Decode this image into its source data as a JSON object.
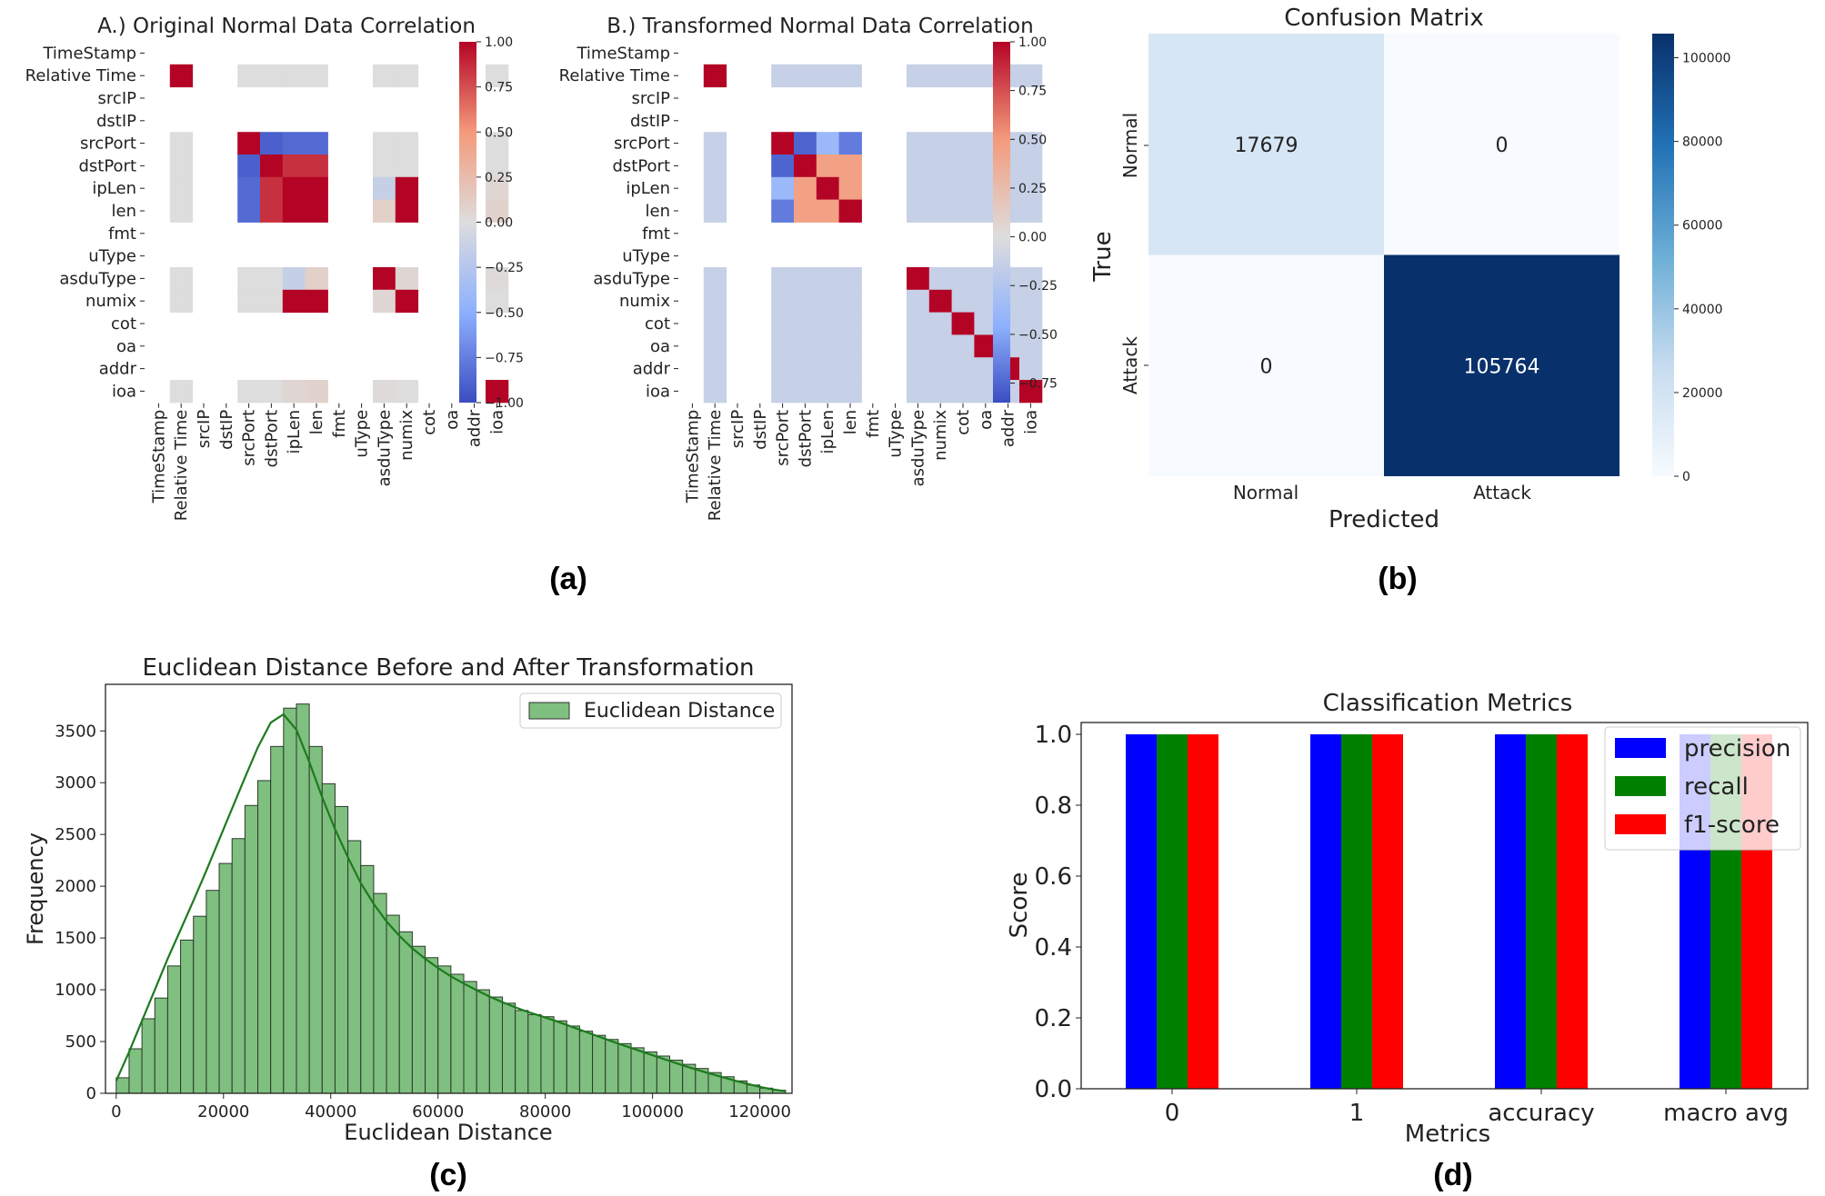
{
  "panel_labels": [
    "(a)",
    "(b)",
    "(c)",
    "(d)"
  ],
  "chart_data": [
    {
      "type": "heatmap",
      "title": "A.) Original Normal Data Correlation",
      "labels": [
        "TimeStamp",
        "Relative Time",
        "srcIP",
        "dstIP",
        "srcPort",
        "dstPort",
        "ipLen",
        "len",
        "fmt",
        "uType",
        "asduType",
        "numix",
        "cot",
        "oa",
        "addr",
        "ioa"
      ],
      "valid": [
        1,
        4,
        5,
        6,
        7,
        10,
        11,
        15
      ],
      "cells": [
        [
          4,
          5,
          -0.9
        ],
        [
          4,
          6,
          -0.85
        ],
        [
          4,
          7,
          -0.85
        ],
        [
          5,
          6,
          0.85
        ],
        [
          5,
          7,
          0.85
        ],
        [
          6,
          7,
          1.0
        ],
        [
          6,
          10,
          -0.15
        ],
        [
          6,
          11,
          1.0
        ],
        [
          7,
          10,
          0.1
        ],
        [
          7,
          11,
          1.0
        ],
        [
          6,
          15,
          0.05
        ],
        [
          7,
          15,
          0.08
        ],
        [
          10,
          11,
          0.05
        ],
        [
          10,
          15,
          0.02
        ]
      ],
      "colorbar": {
        "min": -1.0,
        "max": 1.0,
        "ticks": [
          1.0,
          0.75,
          0.5,
          0.25,
          0.0,
          -0.25,
          -0.5,
          -0.75,
          -1.0
        ]
      },
      "colorbar_labels": [
        "1.00",
        "0.75",
        "0.50",
        "0.25",
        "0.00",
        "−0.25",
        "−0.50",
        "−0.75",
        "−1.00"
      ]
    },
    {
      "type": "heatmap",
      "title": "B.) Transformed Normal Data Correlation",
      "labels": [
        "TimeStamp",
        "Relative Time",
        "srcIP",
        "dstIP",
        "srcPort",
        "dstPort",
        "ipLen",
        "len",
        "fmt",
        "uType",
        "asduType",
        "numix",
        "cot",
        "oa",
        "addr",
        "ioa"
      ],
      "valid": [
        1,
        4,
        5,
        6,
        7,
        10,
        11,
        12,
        13,
        14,
        15
      ],
      "default_offdiag": -0.12,
      "cells": [
        [
          4,
          5,
          -0.75
        ],
        [
          4,
          6,
          -0.35
        ],
        [
          4,
          7,
          -0.65
        ],
        [
          5,
          6,
          0.45
        ],
        [
          5,
          7,
          0.45
        ],
        [
          6,
          7,
          0.45
        ]
      ],
      "colorbar": {
        "min": -0.85,
        "max": 1.0,
        "ticks": [
          1.0,
          0.75,
          0.5,
          0.25,
          0.0,
          -0.25,
          -0.5,
          -0.75
        ]
      },
      "colorbar_labels": [
        "1.00",
        "0.75",
        "0.50",
        "0.25",
        "0.00",
        "−0.25",
        "−0.50",
        "−0.75"
      ]
    },
    {
      "type": "heatmap",
      "title": "Confusion Matrix",
      "xlabel": "Predicted",
      "ylabel": "True",
      "categories": [
        "Normal",
        "Attack"
      ],
      "values": [
        [
          17679,
          0
        ],
        [
          0,
          105764
        ]
      ],
      "value_labels": [
        [
          "17679",
          "0"
        ],
        [
          "0",
          "105764"
        ]
      ],
      "colorbar": {
        "min": 0,
        "max": 105764,
        "ticks": [
          100000,
          80000,
          60000,
          40000,
          20000,
          0
        ]
      },
      "colorbar_labels": [
        "100000",
        "80000",
        "60000",
        "40000",
        "20000",
        "0"
      ]
    },
    {
      "type": "bar",
      "title": "Euclidean Distance Before and After Transformation",
      "xlabel": "Euclidean Distance",
      "ylabel": "Frequency",
      "legend": "Euclidean Distance",
      "bin_start": 0,
      "bin_width": 2400,
      "values": [
        150,
        430,
        720,
        920,
        1230,
        1480,
        1710,
        1960,
        2220,
        2460,
        2780,
        3020,
        3350,
        3720,
        3760,
        3350,
        2990,
        2770,
        2440,
        2200,
        1930,
        1720,
        1560,
        1420,
        1310,
        1230,
        1150,
        1080,
        1000,
        930,
        870,
        800,
        760,
        740,
        700,
        650,
        600,
        560,
        520,
        480,
        440,
        400,
        360,
        320,
        280,
        240,
        200,
        160,
        120,
        80,
        50,
        30
      ],
      "kde": [
        120,
        400,
        700,
        1000,
        1300,
        1580,
        1860,
        2150,
        2450,
        2750,
        3050,
        3340,
        3580,
        3660,
        3510,
        3200,
        2860,
        2550,
        2280,
        2030,
        1830,
        1660,
        1520,
        1400,
        1300,
        1210,
        1130,
        1060,
        995,
        935,
        880,
        830,
        785,
        745,
        705,
        660,
        615,
        570,
        525,
        480,
        438,
        396,
        354,
        312,
        270,
        232,
        195,
        160,
        125,
        92,
        62,
        38,
        20
      ],
      "xlim": [
        -2000,
        126000
      ],
      "ylim": [
        0,
        3950
      ],
      "xticks": [
        0,
        20000,
        40000,
        60000,
        80000,
        100000,
        120000
      ],
      "xtick_labels": [
        "0",
        "20000",
        "40000",
        "60000",
        "80000",
        "100000",
        "120000"
      ],
      "yticks": [
        0,
        500,
        1000,
        1500,
        2000,
        2500,
        3000,
        3500
      ],
      "ytick_labels": [
        "0",
        "500",
        "1000",
        "1500",
        "2000",
        "2500",
        "3000",
        "3500"
      ]
    },
    {
      "type": "bar",
      "title": "Classification Metrics",
      "xlabel": "Metrics",
      "ylabel": "Score",
      "categories": [
        "0",
        "1",
        "accuracy",
        "macro avg"
      ],
      "series": [
        {
          "name": "precision",
          "values": [
            1.0,
            1.0,
            1.0,
            1.0
          ],
          "color": "#0000ff"
        },
        {
          "name": "recall",
          "values": [
            1.0,
            1.0,
            1.0,
            1.0
          ],
          "color": "#008000"
        },
        {
          "name": "f1-score",
          "values": [
            1.0,
            1.0,
            1.0,
            1.0
          ],
          "color": "#ff0000"
        }
      ],
      "ylim": [
        0,
        1.0
      ],
      "yticks": [
        0,
        0.2,
        0.4,
        0.6,
        0.8,
        1.0
      ],
      "ytick_labels": [
        "0.0",
        "0.2",
        "0.4",
        "0.6",
        "0.8",
        "1.0"
      ]
    }
  ]
}
